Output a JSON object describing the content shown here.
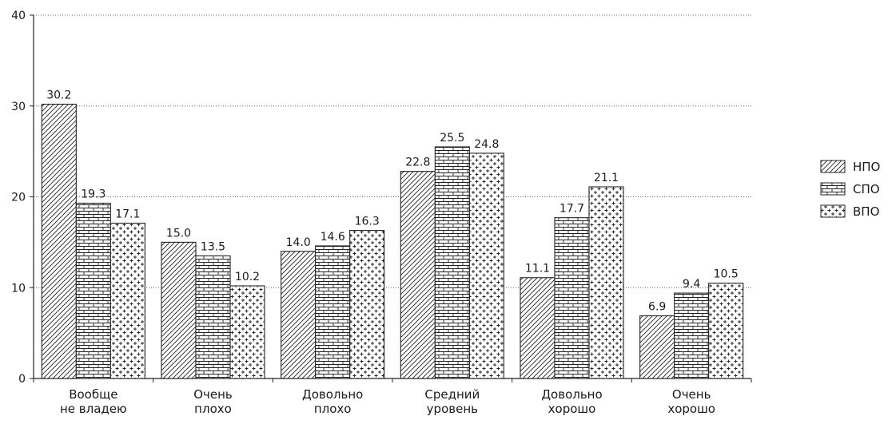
{
  "chart_data": {
    "type": "bar",
    "title": "",
    "xlabel": "",
    "ylabel": "",
    "ylim": [
      0,
      40
    ],
    "yticks": [
      0,
      10,
      20,
      30,
      40
    ],
    "grid": "horizontal dotted",
    "legend_position": "right",
    "categories": [
      [
        "Вообще",
        "не владею"
      ],
      [
        "Очень",
        "плохо"
      ],
      [
        "Довольно",
        "плохо"
      ],
      [
        "Средний",
        "уровень"
      ],
      [
        "Довольно",
        "хорошо"
      ],
      [
        "Очень",
        "хорошо"
      ]
    ],
    "series": [
      {
        "name": "НПО",
        "pattern": "diagonal-hatch",
        "values": [
          30.2,
          15.0,
          14.0,
          22.8,
          11.1,
          6.9
        ],
        "labels": [
          "30.2",
          "15.0",
          "14.0",
          "22.8",
          "11.1",
          "6.9"
        ]
      },
      {
        "name": "СПО",
        "pattern": "brick",
        "values": [
          19.3,
          13.5,
          14.6,
          25.5,
          17.7,
          9.4
        ],
        "labels": [
          "19.3",
          "13.5",
          "14.6",
          "25.5",
          "17.7",
          "9.4"
        ]
      },
      {
        "name": "ВПО",
        "pattern": "cross-dots",
        "values": [
          17.1,
          10.2,
          16.3,
          24.8,
          21.1,
          10.5
        ],
        "labels": [
          "17.1",
          "10.2",
          "16.3",
          "24.8",
          "21.1",
          "10.5"
        ]
      }
    ]
  }
}
